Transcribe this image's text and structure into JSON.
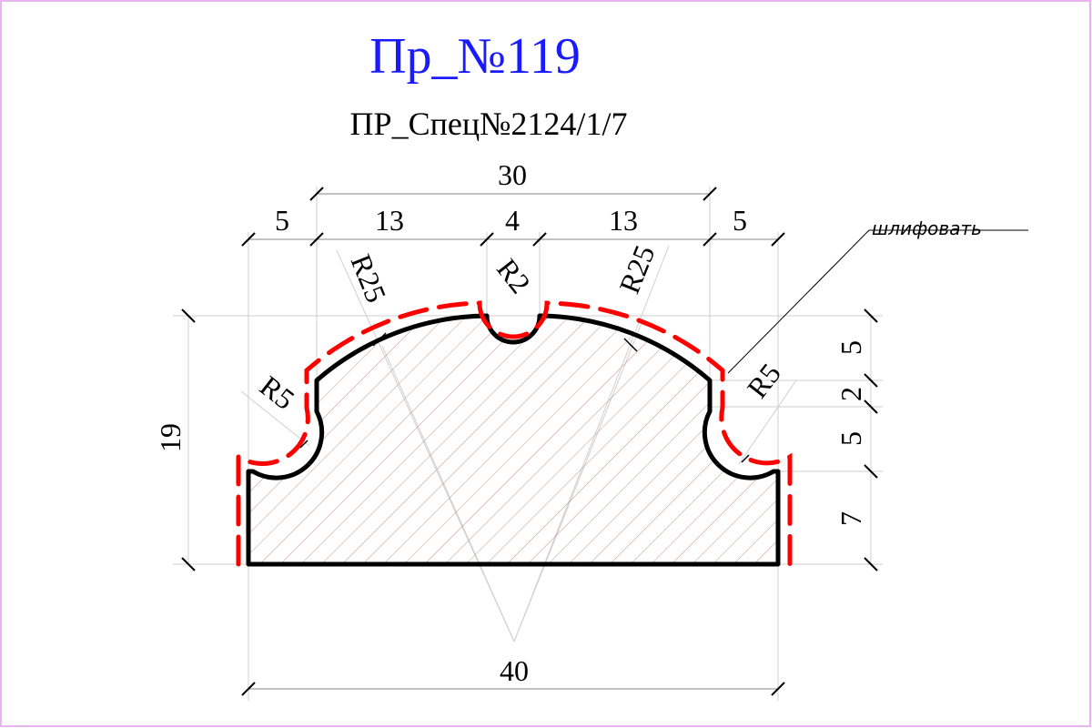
{
  "title": "Пр_№119",
  "subtitle": "ПР_Спец№2124/1/7",
  "note": "шлифовать",
  "dimensions": {
    "top_overall": "30",
    "top_segments": [
      "5",
      "13",
      "4",
      "13",
      "5"
    ],
    "bottom_overall": "40",
    "left_height": "19",
    "right_segments": [
      "5",
      "2",
      "5",
      "7"
    ]
  },
  "radii": {
    "left_arc": "R25",
    "center_groove": "R2",
    "right_arc": "R25",
    "left_fillet": "R5",
    "right_fillet": "R5"
  },
  "colors": {
    "title": "#1a1aff",
    "frame": "#e8b4f0",
    "grind_line": "#ff0000",
    "hatch": "#c89090",
    "outline": "#000000",
    "dim_line": "#cfcfcf"
  }
}
